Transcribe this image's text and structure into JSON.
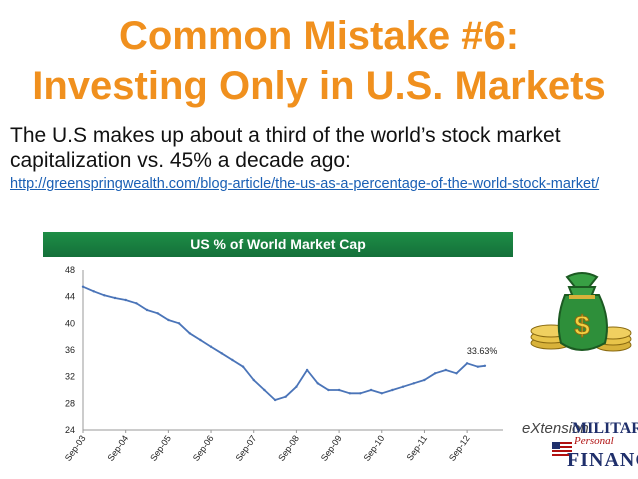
{
  "slide": {
    "title_line1": "Common Mistake #6:",
    "title_line2": "Investing Only in U.S. Markets",
    "body": "The U.S makes up about a third of the world’s stock market capitalization vs. 45% a decade ago:",
    "link": "http://greenspringwealth.com/blog-article/the-us-as-a-percentage-of-the-world-stock-market/"
  },
  "logo": {
    "extension": "eXtension",
    "military": "MILITARY",
    "personal": "Personal",
    "finance": "FINANCE"
  },
  "icons": {
    "money_bag": "money-bag-icon",
    "flag": "flag-icon"
  },
  "colors": {
    "title": "#f0901e",
    "banner": "#1e8e46",
    "series": "#4a74b8",
    "link": "#1a5fb4"
  },
  "chart_data": {
    "type": "line",
    "title": "US % of World Market Cap",
    "xlabel": "",
    "ylabel": "",
    "ylim": [
      24,
      48
    ],
    "yticks": [
      24,
      28,
      32,
      36,
      40,
      44,
      48
    ],
    "xticks": [
      "Sep-03",
      "Sep-04",
      "Sep-05",
      "Sep-06",
      "Sep-07",
      "Sep-08",
      "Sep-09",
      "Sep-10",
      "Sep-11",
      "Sep-12"
    ],
    "xstart": "Sep-03",
    "grid": false,
    "legend": "none",
    "annotation": "33.63%",
    "series": [
      {
        "name": "",
        "x": [
          "Sep-03",
          "Dec-03",
          "Mar-04",
          "Jun-04",
          "Sep-04",
          "Dec-04",
          "Mar-05",
          "Jun-05",
          "Sep-05",
          "Dec-05",
          "Mar-06",
          "Jun-06",
          "Sep-06",
          "Dec-06",
          "Mar-07",
          "Jun-07",
          "Sep-07",
          "Dec-07",
          "Mar-08",
          "Jun-08",
          "Sep-08",
          "Dec-08",
          "Mar-09",
          "Jun-09",
          "Sep-09",
          "Dec-09",
          "Mar-10",
          "Jun-10",
          "Sep-10",
          "Dec-10",
          "Mar-11",
          "Jun-11",
          "Sep-11",
          "Dec-11",
          "Mar-12",
          "Jun-12",
          "Sep-12",
          "Dec-12",
          "Feb-13"
        ],
        "values": [
          45.5,
          44.8,
          44.2,
          43.8,
          43.5,
          43.0,
          42.0,
          41.5,
          40.5,
          40.0,
          38.5,
          37.5,
          36.5,
          35.5,
          34.5,
          33.5,
          31.5,
          30.0,
          28.5,
          29.0,
          30.5,
          33.0,
          31.0,
          30.0,
          30.0,
          29.5,
          29.5,
          30.0,
          29.5,
          30.0,
          30.5,
          31.0,
          31.5,
          32.5,
          33.0,
          32.5,
          34.0,
          33.5,
          33.63
        ]
      }
    ]
  }
}
